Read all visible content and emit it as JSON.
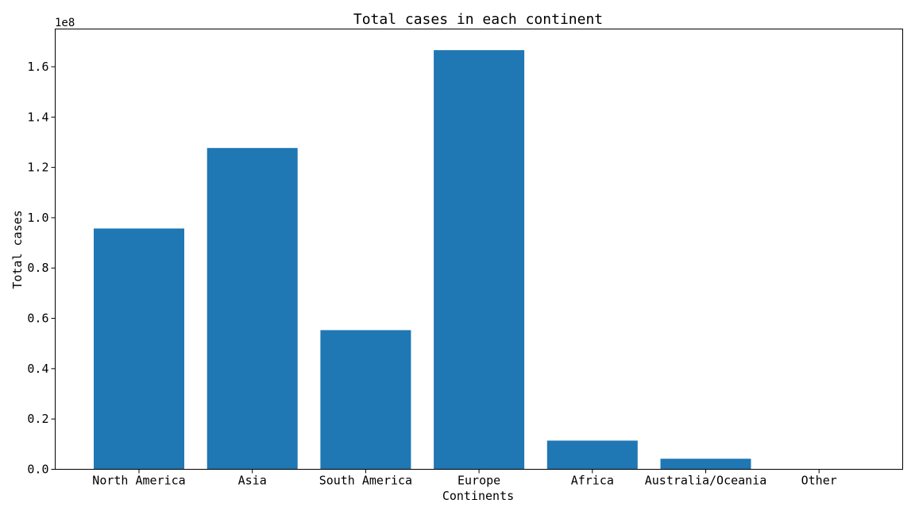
{
  "chart_data": {
    "type": "bar",
    "title": "Total cases in each continent",
    "xlabel": "Continents",
    "ylabel": "Total cases",
    "y_multiplier_label": "1e8",
    "categories": [
      "North America",
      "Asia",
      "South America",
      "Europe",
      "Africa",
      "Australia/Oceania",
      "Other"
    ],
    "values": [
      95700000,
      127700000,
      55300000,
      166600000,
      11400000,
      4200000,
      700
    ],
    "ylim": [
      0,
      175000000
    ],
    "y_ticks": [
      {
        "value": 0,
        "label": "0.0"
      },
      {
        "value": 20000000,
        "label": "0.2"
      },
      {
        "value": 40000000,
        "label": "0.4"
      },
      {
        "value": 60000000,
        "label": "0.6"
      },
      {
        "value": 80000000,
        "label": "0.8"
      },
      {
        "value": 100000000,
        "label": "1.0"
      },
      {
        "value": 120000000,
        "label": "1.2"
      },
      {
        "value": 140000000,
        "label": "1.4"
      },
      {
        "value": 160000000,
        "label": "1.6"
      }
    ],
    "bar_color": "#1f77b4",
    "grid": false,
    "legend": "none"
  }
}
